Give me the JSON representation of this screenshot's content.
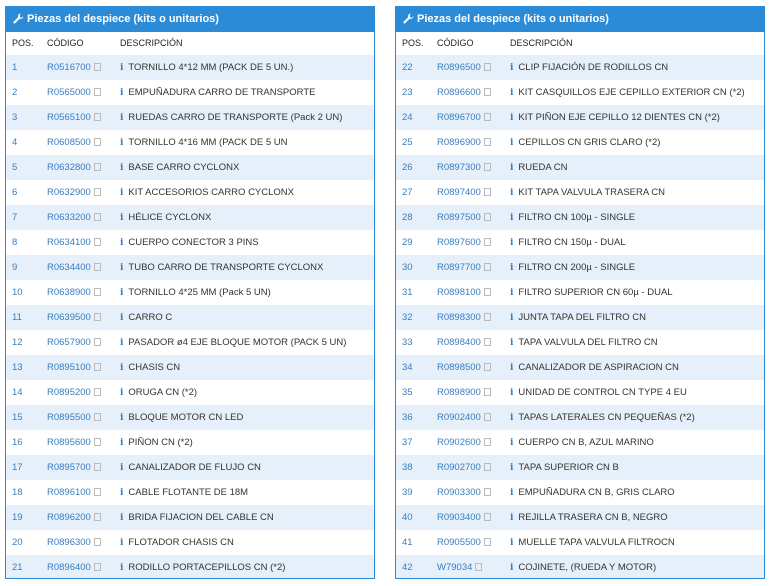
{
  "panels": [
    {
      "title": "Piezas del despiece (kits o unitarios)",
      "columns": [
        "POS.",
        "CÓDIGO",
        "DESCRIPCIÓN"
      ],
      "rows": [
        [
          "1",
          "R0516700",
          "TORNILLO 4*12 MM (PACK DE 5 UN.)"
        ],
        [
          "2",
          "R0565000",
          "EMPUÑADURA CARRO DE TRANSPORTE"
        ],
        [
          "3",
          "R0565100",
          "RUEDAS CARRO DE TRANSPORTE (Pack 2 UN)"
        ],
        [
          "4",
          "R0608500",
          "TORNILLO 4*16 MM (PACK DE 5 UN"
        ],
        [
          "5",
          "R0632800",
          "BASE CARRO CYCLONX"
        ],
        [
          "6",
          "R0632900",
          "KIT ACCESORIOS CARRO CYCLONX"
        ],
        [
          "7",
          "R0633200",
          "HÉLICE CYCLONX"
        ],
        [
          "8",
          "R0634100",
          "CUERPO CONECTOR 3 PINS"
        ],
        [
          "9",
          "R0634400",
          "TUBO CARRO DE TRANSPORTE CYCLONX"
        ],
        [
          "10",
          "R0638900",
          "TORNILLO 4*25 MM (Pack 5 UN)"
        ],
        [
          "11",
          "R0639500",
          "CARRO C"
        ],
        [
          "12",
          "R0657900",
          "PASADOR ø4 EJE BLOQUE MOTOR (PACK 5 UN)"
        ],
        [
          "13",
          "R0895100",
          "CHASIS CN"
        ],
        [
          "14",
          "R0895200",
          "ORUGA CN (*2)"
        ],
        [
          "15",
          "R0895500",
          "BLOQUE MOTOR CN LED"
        ],
        [
          "16",
          "R0895600",
          "PIÑON CN (*2)"
        ],
        [
          "17",
          "R0895700",
          "CANALIZADOR DE FLUJO CN"
        ],
        [
          "18",
          "R0896100",
          "CABLE FLOTANTE DE 18M"
        ],
        [
          "19",
          "R0896200",
          "BRIDA FIJACION DEL CABLE CN"
        ],
        [
          "20",
          "R0896300",
          "FLOTADOR CHASIS CN"
        ],
        [
          "21",
          "R0896400",
          "RODILLO PORTACEPILLOS CN (*2)"
        ]
      ]
    },
    {
      "title": "Piezas del despiece (kits o unitarios)",
      "columns": [
        "POS.",
        "CÓDIGO",
        "DESCRIPCIÓN"
      ],
      "rows": [
        [
          "22",
          "R0896500",
          "CLIP FIJACIÓN DE RODILLOS CN"
        ],
        [
          "23",
          "R0896600",
          "KIT CASQUILLOS EJE CEPILLO EXTERIOR CN (*2)"
        ],
        [
          "24",
          "R0896700",
          "KIT PIÑON EJE CEPILLO 12 DIENTES CN (*2)"
        ],
        [
          "25",
          "R0896900",
          "CEPILLOS CN GRIS CLARO (*2)"
        ],
        [
          "26",
          "R0897300",
          "RUEDA CN"
        ],
        [
          "27",
          "R0897400",
          "KIT TAPA VALVULA TRASERA CN"
        ],
        [
          "28",
          "R0897500",
          "FILTRO CN 100µ - SINGLE"
        ],
        [
          "29",
          "R0897600",
          "FILTRO CN 150µ - DUAL"
        ],
        [
          "30",
          "R0897700",
          "FILTRO CN 200µ - SINGLE"
        ],
        [
          "31",
          "R0898100",
          "FILTRO SUPERIOR CN 60µ - DUAL"
        ],
        [
          "32",
          "R0898300",
          "JUNTA TAPA DEL FILTRO CN"
        ],
        [
          "33",
          "R0898400",
          "TAPA VALVULA DEL FILTRO CN"
        ],
        [
          "34",
          "R0898500",
          "CANALIZADOR DE ASPIRACION CN"
        ],
        [
          "35",
          "R0898900",
          "UNIDAD DE CONTROL CN TYPE 4 EU"
        ],
        [
          "36",
          "R0902400",
          "TAPAS LATERALES CN PEQUEÑAS (*2)"
        ],
        [
          "37",
          "R0902600",
          "CUERPO CN B, AZUL MARINO"
        ],
        [
          "38",
          "R0902700",
          "TAPA SUPERIOR CN B"
        ],
        [
          "39",
          "R0903300",
          "EMPUÑADURA CN B, GRIS CLARO"
        ],
        [
          "40",
          "R0903400",
          "REJILLA TRASERA CN B, NEGRO"
        ],
        [
          "41",
          "R0905500",
          "MUELLE TAPA VALVULA FILTROCN"
        ],
        [
          "42",
          "W79034",
          "COJINETE, (RUEDA Y MOTOR)"
        ]
      ]
    }
  ]
}
